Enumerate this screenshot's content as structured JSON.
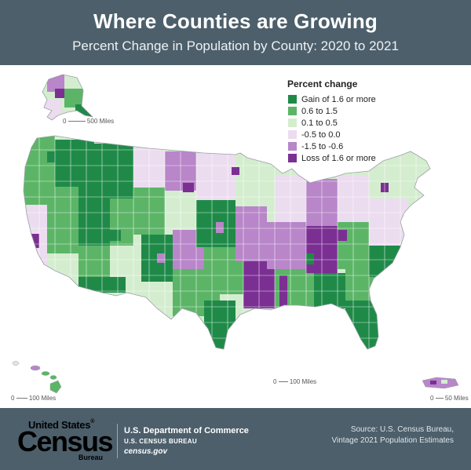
{
  "header": {
    "title": "Where Counties are Growing",
    "subtitle": "Percent Change in Population by County: 2020 to 2021"
  },
  "legend": {
    "title": "Percent change",
    "items": [
      {
        "label": "Gain of 1.6 or more",
        "color": "#1f8a48"
      },
      {
        "label": "0.6 to 1.5",
        "color": "#5cb567"
      },
      {
        "label": "0.1 to 0.5",
        "color": "#d4edcf"
      },
      {
        "label": "-0.5 to 0.0",
        "color": "#ecdcef"
      },
      {
        "label": "-1.5 to -0.6",
        "color": "#b886c9"
      },
      {
        "label": "Loss of 1.6 or more",
        "color": "#7b2f93"
      }
    ]
  },
  "scales": {
    "alaska": {
      "zero": "0",
      "label": "500 Miles"
    },
    "conus": {
      "zero": "0",
      "label": "100 Miles"
    },
    "hawaii": {
      "zero": "0",
      "label": "100 Miles"
    },
    "puerto_rico": {
      "zero": "0",
      "label": "50 Miles"
    }
  },
  "footer": {
    "logo_line1": "United States",
    "logo_reg": "®",
    "logo_census": "Census",
    "logo_bureau": "Bureau",
    "dept_line1": "U.S. Department of Commerce",
    "dept_line2": "U.S. CENSUS BUREAU",
    "dept_line3": "census.gov",
    "source_line1": "Source: U.S. Census Bureau,",
    "source_line2": "Vintage 2021 Population Estimates"
  }
}
